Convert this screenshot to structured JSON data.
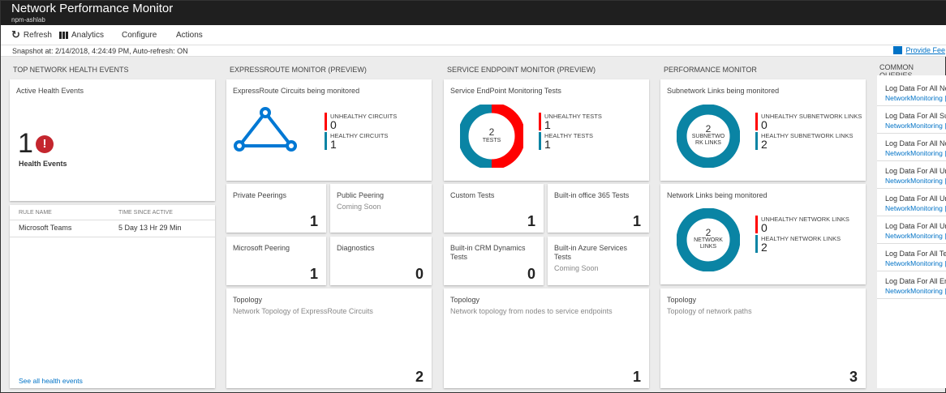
{
  "header": {
    "title": "Network Performance Monitor",
    "subtitle": "npm-ashlab"
  },
  "toolbar": {
    "refresh": "Refresh",
    "analytics": "Analytics",
    "configure": "Configure",
    "actions": "Actions"
  },
  "snapshot": "Snapshot at: 2/14/2018, 4:24:49 PM, Auto-refresh: ON",
  "feedback": "Provide Fee",
  "colors": {
    "unhealthy": "#ff0000",
    "healthy": "#0a84a4",
    "accent": "#0072c6",
    "alert": "#c4262e"
  },
  "health": {
    "section": "TOP NETWORK HEALTH EVENTS",
    "card_title": "Active Health Events",
    "count": "1",
    "count_label": "Health Events",
    "col_rule": "RULE NAME",
    "col_time": "TIME SINCE ACTIVE",
    "rows": [
      {
        "rule": "Microsoft Teams",
        "time": "5 Day 13 Hr 29 Min"
      }
    ],
    "see_all": "See all health events"
  },
  "expressroute": {
    "section": "EXPRESSROUTE MONITOR (PREVIEW)",
    "card_title": "ExpressRoute Circuits being monitored",
    "unhealthy_label": "UNHEALTHY CIRCUITS",
    "unhealthy": "0",
    "healthy_label": "HEALTHY CIRCUITS",
    "healthy": "1",
    "tiles": [
      {
        "title": "Private Peerings",
        "value": "1"
      },
      {
        "title": "Public Peering",
        "sub": "Coming Soon"
      },
      {
        "title": "Microsoft Peering",
        "value": "1"
      },
      {
        "title": "Diagnostics",
        "value": "0"
      }
    ],
    "topology": {
      "title": "Topology",
      "sub": "Network Topology of ExpressRoute Circuits",
      "value": "2"
    }
  },
  "endpoint": {
    "section": "SERVICE ENDPOINT MONITOR (PREVIEW)",
    "card_title": "Service EndPoint Monitoring Tests",
    "center_num": "2",
    "center_label": "TESTS",
    "unhealthy_label": "UNHEALTHY TESTS",
    "unhealthy": "1",
    "healthy_label": "HEALTHY TESTS",
    "healthy": "1",
    "tiles": [
      {
        "title": "Custom Tests",
        "value": "1"
      },
      {
        "title": "Built-in office 365 Tests",
        "value": "1"
      },
      {
        "title": "Built-in CRM Dynamics Tests",
        "value": "0"
      },
      {
        "title": "Built-in Azure Services Tests",
        "sub": "Coming Soon"
      }
    ],
    "topology": {
      "title": "Topology",
      "sub": "Network topology from nodes to service endpoints",
      "value": "1"
    }
  },
  "performance": {
    "section": "PERFORMANCE MONITOR",
    "subnet": {
      "title": "Subnetwork Links being monitored",
      "center_num": "2",
      "center_label": "SUBNETWO RK LINKS",
      "unhealthy_label": "UNHEALTHY SUBNETWORK LINKS",
      "unhealthy": "0",
      "healthy_label": "HEALTHY SUBNETWORK LINKS",
      "healthy": "2"
    },
    "network": {
      "title": "Network Links being monitored",
      "center_num": "2",
      "center_label": "NETWORK LINKS",
      "unhealthy_label": "UNHEALTHY NETWORK LINKS",
      "unhealthy": "0",
      "healthy_label": "HEALTHY NETWORK LINKS",
      "healthy": "2"
    },
    "topology": {
      "title": "Topology",
      "sub": "Topology of network paths",
      "value": "3"
    }
  },
  "queries": {
    "section": "COMMON QUERIES",
    "items": [
      {
        "title": "Log Data For All Ne",
        "link": "NetworkMonitoring |"
      },
      {
        "title": "Log Data For All Sul",
        "link": "NetworkMonitoring |"
      },
      {
        "title": "Log Data For All No",
        "link": "NetworkMonitoring |"
      },
      {
        "title": "Log Data For All Un",
        "link": "NetworkMonitoring |"
      },
      {
        "title": "Log Data For All Un",
        "link": "NetworkMonitoring |"
      },
      {
        "title": "Log Data For All Un",
        "link": "NetworkMonitoring |"
      },
      {
        "title": "Log Data For All Tes",
        "link": "NetworkMonitoring |"
      },
      {
        "title": "Log Data For All Enc",
        "link": "NetworkMonitoring |"
      }
    ]
  }
}
